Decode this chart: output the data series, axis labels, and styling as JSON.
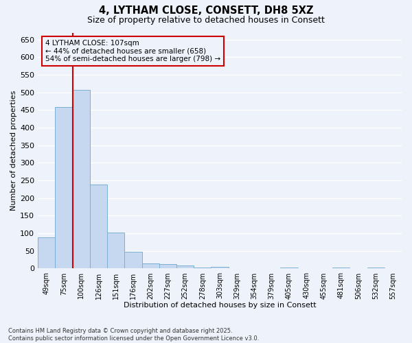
{
  "title_line1": "4, LYTHAM CLOSE, CONSETT, DH8 5XZ",
  "title_line2": "Size of property relative to detached houses in Consett",
  "xlabel": "Distribution of detached houses by size in Consett",
  "ylabel": "Number of detached properties",
  "bar_color": "#c5d8ef",
  "bar_edge_color": "#7aafd4",
  "categories": [
    "49sqm",
    "75sqm",
    "100sqm",
    "126sqm",
    "151sqm",
    "176sqm",
    "202sqm",
    "227sqm",
    "252sqm",
    "278sqm",
    "303sqm",
    "329sqm",
    "354sqm",
    "379sqm",
    "405sqm",
    "430sqm",
    "455sqm",
    "481sqm",
    "506sqm",
    "532sqm",
    "557sqm"
  ],
  "values": [
    88,
    458,
    507,
    238,
    103,
    47,
    15,
    12,
    8,
    2,
    5,
    0,
    0,
    0,
    3,
    0,
    0,
    2,
    0,
    3,
    0
  ],
  "ylim": [
    0,
    670
  ],
  "yticks": [
    0,
    50,
    100,
    150,
    200,
    250,
    300,
    350,
    400,
    450,
    500,
    550,
    600,
    650
  ],
  "vline_x": 2,
  "vline_color": "#cc0000",
  "annotation_text": "4 LYTHAM CLOSE: 107sqm\n← 44% of detached houses are smaller (658)\n54% of semi-detached houses are larger (798) →",
  "annotation_box_color": "#cc0000",
  "background_color": "#eef2fa",
  "grid_color": "#ffffff",
  "footnote": "Contains HM Land Registry data © Crown copyright and database right 2025.\nContains public sector information licensed under the Open Government Licence v3.0.",
  "bin_width": 1,
  "n_bins": 21
}
